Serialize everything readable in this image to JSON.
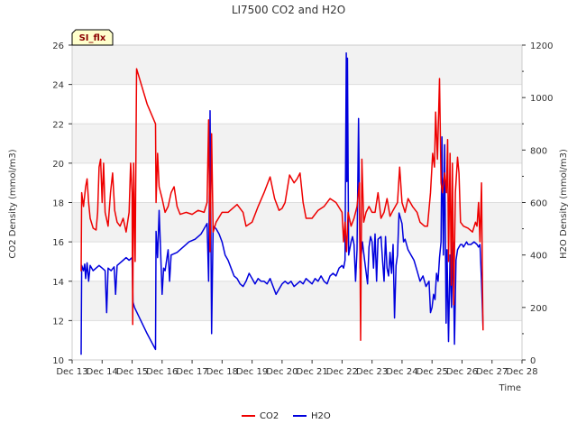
{
  "chart_data": {
    "type": "line",
    "title": "LI7500 CO2 and H2O",
    "badge": "SI_flx",
    "xlabel": "Time",
    "ylabel_left": "CO2 Density (mmol/m3)",
    "ylabel_right": "H2O Density (mmol/m3)",
    "xlim": [
      13,
      28
    ],
    "ylim_left": [
      10,
      26
    ],
    "ylim_right": [
      0,
      1200
    ],
    "x_ticks": [
      13,
      14,
      15,
      16,
      17,
      18,
      19,
      20,
      21,
      22,
      23,
      24,
      25,
      26,
      27,
      28
    ],
    "x_tick_labels": [
      "Dec 13",
      "Dec 14",
      "Dec 15",
      "Dec 16",
      "Dec 17",
      "Dec 18",
      "Dec 19",
      "Dec 20",
      "Dec 21",
      "Dec 22",
      "Dec 23",
      "Dec 24",
      "Dec 25",
      "Dec 26",
      "Dec 27",
      "Dec 28"
    ],
    "y_ticks_left": [
      10,
      12,
      14,
      16,
      18,
      20,
      22,
      24,
      26
    ],
    "y_ticks_right": [
      0,
      200,
      400,
      600,
      800,
      1000,
      1200
    ],
    "grid": true,
    "legend_position": "bottom-center",
    "series": [
      {
        "name": "CO2",
        "axis": "left",
        "color": "#ee0000",
        "points": [
          [
            13.3,
            14.5
          ],
          [
            13.32,
            18.5
          ],
          [
            13.38,
            17.8
          ],
          [
            13.45,
            18.8
          ],
          [
            13.5,
            19.2
          ],
          [
            13.55,
            18.0
          ],
          [
            13.6,
            17.2
          ],
          [
            13.7,
            16.7
          ],
          [
            13.8,
            16.6
          ],
          [
            13.85,
            17.5
          ],
          [
            13.9,
            19.8
          ],
          [
            13.95,
            20.2
          ],
          [
            14.0,
            18.0
          ],
          [
            14.05,
            20.0
          ],
          [
            14.1,
            17.5
          ],
          [
            14.2,
            16.8
          ],
          [
            14.28,
            18.5
          ],
          [
            14.35,
            19.5
          ],
          [
            14.42,
            17.6
          ],
          [
            14.5,
            17.0
          ],
          [
            14.6,
            16.8
          ],
          [
            14.7,
            17.2
          ],
          [
            14.8,
            16.5
          ],
          [
            14.9,
            17.5
          ],
          [
            14.95,
            20.0
          ],
          [
            15.0,
            18.5
          ],
          [
            15.02,
            11.8
          ],
          [
            15.05,
            20.0
          ],
          [
            15.1,
            15.0
          ],
          [
            15.15,
            24.8
          ],
          [
            15.5,
            23.0
          ],
          [
            15.78,
            22.0
          ],
          [
            15.8,
            18.0
          ],
          [
            15.85,
            20.5
          ],
          [
            15.9,
            18.8
          ],
          [
            16.0,
            18.2
          ],
          [
            16.1,
            17.5
          ],
          [
            16.2,
            17.8
          ],
          [
            16.3,
            18.5
          ],
          [
            16.4,
            18.8
          ],
          [
            16.5,
            17.8
          ],
          [
            16.6,
            17.4
          ],
          [
            16.8,
            17.5
          ],
          [
            17.0,
            17.4
          ],
          [
            17.2,
            17.6
          ],
          [
            17.4,
            17.5
          ],
          [
            17.5,
            18.0
          ],
          [
            17.55,
            22.2
          ],
          [
            17.6,
            15.5
          ],
          [
            17.65,
            21.5
          ],
          [
            17.7,
            16.5
          ],
          [
            17.8,
            17.0
          ],
          [
            18.0,
            17.5
          ],
          [
            18.2,
            17.5
          ],
          [
            18.5,
            17.9
          ],
          [
            18.7,
            17.5
          ],
          [
            18.8,
            16.8
          ],
          [
            19.0,
            17.0
          ],
          [
            19.2,
            17.8
          ],
          [
            19.4,
            18.5
          ],
          [
            19.6,
            19.3
          ],
          [
            19.75,
            18.2
          ],
          [
            19.9,
            17.6
          ],
          [
            20.0,
            17.7
          ],
          [
            20.1,
            18.0
          ],
          [
            20.25,
            19.4
          ],
          [
            20.4,
            19.0
          ],
          [
            20.5,
            19.2
          ],
          [
            20.6,
            19.5
          ],
          [
            20.7,
            18.0
          ],
          [
            20.8,
            17.2
          ],
          [
            21.0,
            17.2
          ],
          [
            21.2,
            17.6
          ],
          [
            21.4,
            17.8
          ],
          [
            21.6,
            18.2
          ],
          [
            21.8,
            18.0
          ],
          [
            22.0,
            17.5
          ],
          [
            22.05,
            16.0
          ],
          [
            22.1,
            17.0
          ],
          [
            22.15,
            15.5
          ],
          [
            22.2,
            17.5
          ],
          [
            22.3,
            16.8
          ],
          [
            22.4,
            17.2
          ],
          [
            22.5,
            17.8
          ],
          [
            22.58,
            19.0
          ],
          [
            22.62,
            11.0
          ],
          [
            22.66,
            20.2
          ],
          [
            22.72,
            17.0
          ],
          [
            22.8,
            17.5
          ],
          [
            22.9,
            17.8
          ],
          [
            23.0,
            17.5
          ],
          [
            23.1,
            17.5
          ],
          [
            23.2,
            18.5
          ],
          [
            23.3,
            17.2
          ],
          [
            23.4,
            17.5
          ],
          [
            23.5,
            18.2
          ],
          [
            23.6,
            17.3
          ],
          [
            23.7,
            17.6
          ],
          [
            23.85,
            18.0
          ],
          [
            23.92,
            19.8
          ],
          [
            24.0,
            18.0
          ],
          [
            24.1,
            17.5
          ],
          [
            24.2,
            18.2
          ],
          [
            24.35,
            17.8
          ],
          [
            24.5,
            17.5
          ],
          [
            24.6,
            17.0
          ],
          [
            24.75,
            16.8
          ],
          [
            24.85,
            16.8
          ],
          [
            24.95,
            18.5
          ],
          [
            25.02,
            20.5
          ],
          [
            25.08,
            19.8
          ],
          [
            25.12,
            22.6
          ],
          [
            25.18,
            20.2
          ],
          [
            25.25,
            24.3
          ],
          [
            25.3,
            19.0
          ],
          [
            25.35,
            18.5
          ],
          [
            25.42,
            19.5
          ],
          [
            25.48,
            18.5
          ],
          [
            25.52,
            21.2
          ],
          [
            25.55,
            15.0
          ],
          [
            25.6,
            20.5
          ],
          [
            25.64,
            13.8
          ],
          [
            25.68,
            20.0
          ],
          [
            25.72,
            12.8
          ],
          [
            25.78,
            18.5
          ],
          [
            25.85,
            20.3
          ],
          [
            25.9,
            19.5
          ],
          [
            25.95,
            17.0
          ],
          [
            26.05,
            16.8
          ],
          [
            26.2,
            16.7
          ],
          [
            26.35,
            16.5
          ],
          [
            26.45,
            17.0
          ],
          [
            26.5,
            16.8
          ],
          [
            26.55,
            18.0
          ],
          [
            26.6,
            16.0
          ],
          [
            26.65,
            19.0
          ],
          [
            26.68,
            14.0
          ],
          [
            26.7,
            11.5
          ]
        ]
      },
      {
        "name": "H2O",
        "axis": "right",
        "color": "#0000dd",
        "points": [
          [
            13.3,
            20
          ],
          [
            13.32,
            360
          ],
          [
            13.38,
            340
          ],
          [
            13.42,
            365
          ],
          [
            13.45,
            310
          ],
          [
            13.5,
            370
          ],
          [
            13.55,
            300
          ],
          [
            13.6,
            360
          ],
          [
            13.7,
            340
          ],
          [
            13.8,
            350
          ],
          [
            13.9,
            360
          ],
          [
            14.0,
            350
          ],
          [
            14.1,
            340
          ],
          [
            14.15,
            180
          ],
          [
            14.2,
            350
          ],
          [
            14.3,
            340
          ],
          [
            14.4,
            355
          ],
          [
            14.45,
            250
          ],
          [
            14.5,
            360
          ],
          [
            14.6,
            370
          ],
          [
            14.7,
            380
          ],
          [
            14.8,
            390
          ],
          [
            14.9,
            380
          ],
          [
            15.0,
            390
          ],
          [
            15.03,
            220
          ],
          [
            15.08,
            200
          ],
          [
            15.5,
            100
          ],
          [
            15.78,
            40
          ],
          [
            15.8,
            490
          ],
          [
            15.85,
            390
          ],
          [
            15.9,
            570
          ],
          [
            15.95,
            420
          ],
          [
            16.0,
            250
          ],
          [
            16.05,
            350
          ],
          [
            16.1,
            340
          ],
          [
            16.2,
            420
          ],
          [
            16.25,
            300
          ],
          [
            16.3,
            400
          ],
          [
            16.5,
            410
          ],
          [
            16.7,
            430
          ],
          [
            16.9,
            450
          ],
          [
            17.1,
            460
          ],
          [
            17.3,
            480
          ],
          [
            17.5,
            520
          ],
          [
            17.55,
            300
          ],
          [
            17.6,
            950
          ],
          [
            17.65,
            100
          ],
          [
            17.7,
            510
          ],
          [
            17.8,
            500
          ],
          [
            17.9,
            480
          ],
          [
            18.0,
            450
          ],
          [
            18.1,
            400
          ],
          [
            18.2,
            380
          ],
          [
            18.3,
            350
          ],
          [
            18.4,
            320
          ],
          [
            18.5,
            310
          ],
          [
            18.6,
            290
          ],
          [
            18.7,
            280
          ],
          [
            18.8,
            300
          ],
          [
            18.9,
            330
          ],
          [
            19.0,
            310
          ],
          [
            19.1,
            290
          ],
          [
            19.2,
            310
          ],
          [
            19.3,
            300
          ],
          [
            19.4,
            300
          ],
          [
            19.5,
            290
          ],
          [
            19.6,
            310
          ],
          [
            19.7,
            280
          ],
          [
            19.8,
            250
          ],
          [
            19.9,
            270
          ],
          [
            20.0,
            290
          ],
          [
            20.1,
            300
          ],
          [
            20.2,
            290
          ],
          [
            20.3,
            300
          ],
          [
            20.4,
            280
          ],
          [
            20.5,
            290
          ],
          [
            20.6,
            300
          ],
          [
            20.7,
            290
          ],
          [
            20.8,
            310
          ],
          [
            20.9,
            300
          ],
          [
            21.0,
            290
          ],
          [
            21.1,
            310
          ],
          [
            21.2,
            300
          ],
          [
            21.3,
            320
          ],
          [
            21.4,
            300
          ],
          [
            21.5,
            290
          ],
          [
            21.6,
            320
          ],
          [
            21.7,
            330
          ],
          [
            21.8,
            320
          ],
          [
            21.9,
            350
          ],
          [
            22.0,
            360
          ],
          [
            22.05,
            350
          ],
          [
            22.1,
            380
          ],
          [
            22.14,
            1170
          ],
          [
            22.16,
            680
          ],
          [
            22.18,
            1150
          ],
          [
            22.22,
            400
          ],
          [
            22.3,
            450
          ],
          [
            22.35,
            470
          ],
          [
            22.4,
            440
          ],
          [
            22.45,
            300
          ],
          [
            22.5,
            420
          ],
          [
            22.55,
            920
          ],
          [
            22.6,
            350
          ],
          [
            22.68,
            450
          ],
          [
            22.75,
            380
          ],
          [
            22.85,
            290
          ],
          [
            22.9,
            430
          ],
          [
            22.95,
            470
          ],
          [
            23.0,
            450
          ],
          [
            23.05,
            350
          ],
          [
            23.1,
            480
          ],
          [
            23.15,
            300
          ],
          [
            23.2,
            460
          ],
          [
            23.3,
            470
          ],
          [
            23.35,
            380
          ],
          [
            23.4,
            300
          ],
          [
            23.45,
            470
          ],
          [
            23.5,
            350
          ],
          [
            23.55,
            320
          ],
          [
            23.6,
            410
          ],
          [
            23.65,
            330
          ],
          [
            23.7,
            440
          ],
          [
            23.75,
            160
          ],
          [
            23.8,
            360
          ],
          [
            23.85,
            400
          ],
          [
            23.9,
            560
          ],
          [
            24.0,
            520
          ],
          [
            24.05,
            450
          ],
          [
            24.1,
            460
          ],
          [
            24.2,
            420
          ],
          [
            24.3,
            400
          ],
          [
            24.4,
            380
          ],
          [
            24.5,
            340
          ],
          [
            24.6,
            300
          ],
          [
            24.7,
            320
          ],
          [
            24.8,
            280
          ],
          [
            24.9,
            300
          ],
          [
            24.95,
            180
          ],
          [
            25.0,
            200
          ],
          [
            25.05,
            250
          ],
          [
            25.1,
            230
          ],
          [
            25.15,
            330
          ],
          [
            25.2,
            300
          ],
          [
            25.25,
            390
          ],
          [
            25.3,
            450
          ],
          [
            25.33,
            850
          ],
          [
            25.38,
            400
          ],
          [
            25.42,
            820
          ],
          [
            25.47,
            140
          ],
          [
            25.5,
            420
          ],
          [
            25.55,
            70
          ],
          [
            25.6,
            400
          ],
          [
            25.65,
            200
          ],
          [
            25.7,
            450
          ],
          [
            25.75,
            60
          ],
          [
            25.8,
            380
          ],
          [
            25.85,
            420
          ],
          [
            25.9,
            430
          ],
          [
            25.95,
            440
          ],
          [
            26.0,
            440
          ],
          [
            26.05,
            430
          ],
          [
            26.1,
            440
          ],
          [
            26.15,
            450
          ],
          [
            26.2,
            440
          ],
          [
            26.3,
            440
          ],
          [
            26.4,
            450
          ],
          [
            26.5,
            440
          ],
          [
            26.55,
            430
          ],
          [
            26.6,
            440
          ],
          [
            26.65,
            300
          ],
          [
            26.7,
            120
          ]
        ]
      }
    ]
  }
}
